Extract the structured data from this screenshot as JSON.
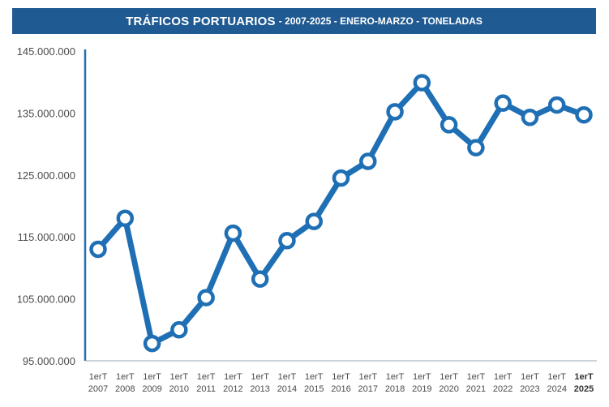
{
  "header": {
    "title": "TRÁFICOS PORTUARIOS",
    "subtitle": "- 2007-2025 - ENERO-MARZO - TONELADAS"
  },
  "colors": {
    "title_bar": "#1f5a92",
    "line": "#1f6fb5",
    "marker_fill": "#ffffff",
    "axis": "#1f6fb5"
  },
  "chart_data": {
    "type": "line",
    "title": "TRÁFICOS PORTUARIOS - 2007-2025 - ENERO-MARZO - TONELADAS",
    "ylim": [
      95000000,
      145000000
    ],
    "yticks": [
      95000000,
      105000000,
      115000000,
      125000000,
      135000000,
      145000000
    ],
    "ytick_labels": [
      "95.000.000",
      "105.000.000",
      "115.000.000",
      "125.000.000",
      "135.000.000",
      "145.000.000"
    ],
    "categories": [
      [
        "1erT",
        "2007"
      ],
      [
        "1erT",
        "2008"
      ],
      [
        "1erT",
        "2009"
      ],
      [
        "1erT",
        "2010"
      ],
      [
        "1erT",
        "2011"
      ],
      [
        "1erT",
        "2012"
      ],
      [
        "1erT",
        "2013"
      ],
      [
        "1erT",
        "2014"
      ],
      [
        "1erT",
        "2015"
      ],
      [
        "1erT",
        "2016"
      ],
      [
        "1erT",
        "2017"
      ],
      [
        "1erT",
        "2018"
      ],
      [
        "1erT",
        "2019"
      ],
      [
        "1erT",
        "2020"
      ],
      [
        "1erT",
        "2021"
      ],
      [
        "1erT",
        "2022"
      ],
      [
        "1erT",
        "2023"
      ],
      [
        "1erT",
        "2024"
      ],
      [
        "1erT",
        "2025"
      ]
    ],
    "series": [
      {
        "values": [
          113000000,
          118000000,
          97800000,
          100000000,
          105200000,
          115600000,
          108200000,
          114400000,
          117500000,
          124500000,
          127200000,
          135200000,
          139900000,
          133100000,
          129400000,
          136600000,
          134300000,
          136300000,
          134700000
        ]
      }
    ],
    "grid": false,
    "legend": "none"
  }
}
